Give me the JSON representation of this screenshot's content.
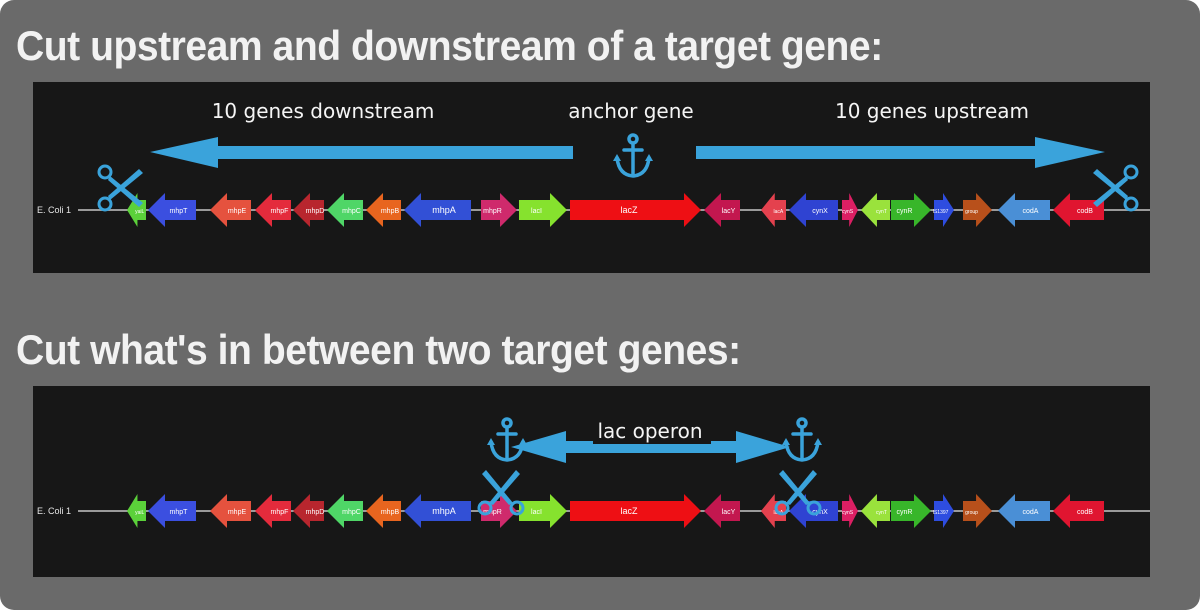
{
  "panel1": {
    "heading": "Cut upstream and downstream of a target gene:",
    "label_left": "10 genes downstream",
    "label_center": "anchor gene",
    "label_right": "10 genes upstream",
    "genome_label": "E. Coli 1"
  },
  "panel2": {
    "heading": "Cut what's in between two target genes:",
    "label_center": "lac operon",
    "genome_label": "E. Coli 1"
  },
  "genes": [
    {
      "name": "yaiL",
      "color": "#5bd13a",
      "dir": "left"
    },
    {
      "name": "mhpT",
      "color": "#3b4fe0",
      "dir": "left"
    },
    {
      "name": "mhpE",
      "color": "#e5523e",
      "dir": "left"
    },
    {
      "name": "mhpF",
      "color": "#e42b3c",
      "dir": "left"
    },
    {
      "name": "mhpD",
      "color": "#b8262e",
      "dir": "left"
    },
    {
      "name": "mhpC",
      "color": "#4fd667",
      "dir": "left"
    },
    {
      "name": "mhpB",
      "color": "#e8651f",
      "dir": "left"
    },
    {
      "name": "mhpA",
      "color": "#3250d6",
      "dir": "left"
    },
    {
      "name": "mhpR",
      "color": "#cf2a6c",
      "dir": "right"
    },
    {
      "name": "lacI",
      "color": "#86e22e",
      "dir": "right"
    },
    {
      "name": "lacZ",
      "color": "#ee0f14",
      "dir": "right"
    },
    {
      "name": "lacY",
      "color": "#c3174f",
      "dir": "left"
    },
    {
      "name": "lacA",
      "color": "#e4414e",
      "dir": "left"
    },
    {
      "name": "cynX",
      "color": "#2f43d2",
      "dir": "left"
    },
    {
      "name": "cynS",
      "color": "#dc1f63",
      "dir": "right"
    },
    {
      "name": "cynT",
      "color": "#9ae23c",
      "dir": "left"
    },
    {
      "name": "cynR",
      "color": "#38b62a",
      "dir": "right"
    },
    {
      "name": "IS1397",
      "color": "#2e4de0",
      "dir": "right"
    },
    {
      "name": "group",
      "color": "#b8501b",
      "dir": "right"
    },
    {
      "name": "codA",
      "color": "#4a8fd6",
      "dir": "left"
    },
    {
      "name": "codB",
      "color": "#e01530",
      "dir": "left"
    }
  ],
  "colors": {
    "background": "#6a6a6a",
    "panel": "#171717",
    "heading_text": "#f2f2f2",
    "annotation_blue": "#3aa3db",
    "scissors_blue": "#3aa3db",
    "genome_line": "#9a9a9a"
  },
  "icons": {
    "anchor": "anchor-icon",
    "scissors": "scissors-icon"
  }
}
